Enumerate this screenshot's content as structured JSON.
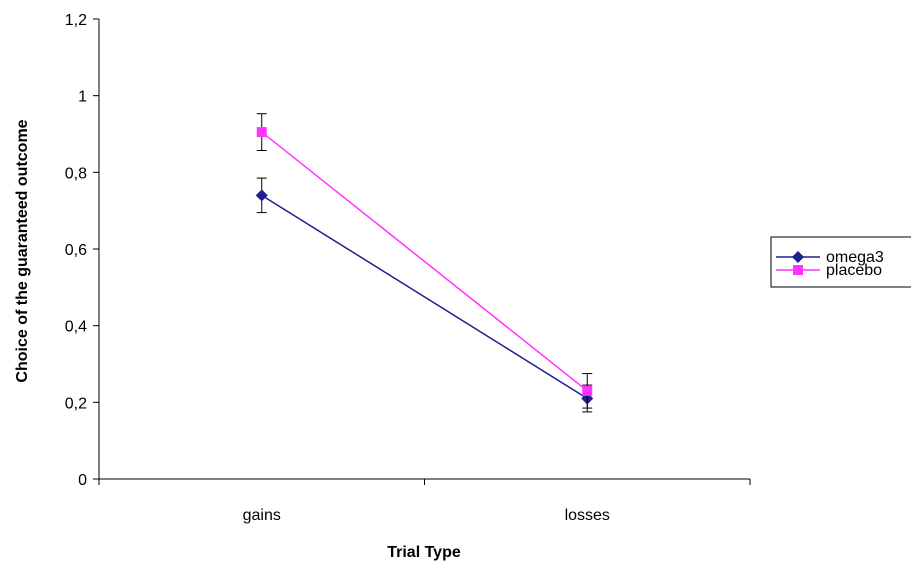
{
  "chart_data": {
    "type": "line",
    "xlabel": "Trial Type",
    "ylabel": "Choice of the guaranteed outcome",
    "categories": [
      "gains",
      "losses"
    ],
    "ylim": [
      0,
      1.2
    ],
    "yticks": [
      0,
      0.2,
      0.4,
      0.6,
      0.8,
      1,
      1.2
    ],
    "ytick_labels": [
      "0",
      "0,2",
      "0,4",
      "0,6",
      "0,8",
      "1",
      "1,2"
    ],
    "grid": false,
    "legend_position": "right",
    "series": [
      {
        "name": "omega3",
        "values": [
          0.74,
          0.21
        ],
        "errors": [
          0.045,
          0.035
        ],
        "color": "#1f1f8f",
        "marker": "diamond"
      },
      {
        "name": "placebo",
        "values": [
          0.905,
          0.23
        ],
        "errors": [
          0.048,
          0.045
        ],
        "color": "#ff33ff",
        "marker": "square"
      }
    ]
  }
}
